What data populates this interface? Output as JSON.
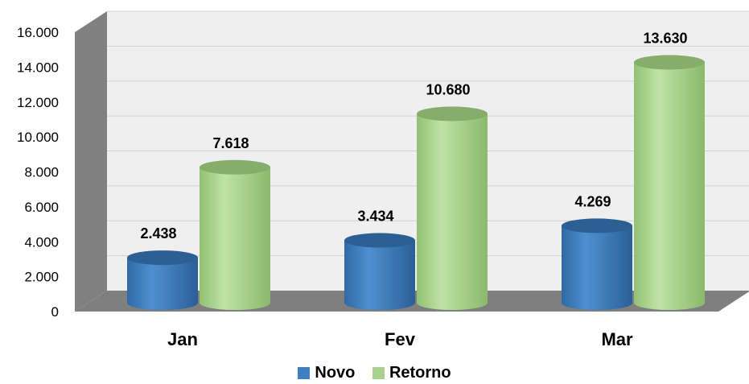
{
  "chart_data": {
    "type": "bar",
    "categories": [
      "Jan",
      "Fev",
      "Mar"
    ],
    "series": [
      {
        "name": "Novo",
        "values": [
          2438,
          3434,
          4269
        ],
        "labels": [
          "2.438",
          "3.434",
          "4.269"
        ],
        "color": "#3d7fc0"
      },
      {
        "name": "Retorno",
        "values": [
          7618,
          10680,
          13630
        ],
        "labels": [
          "7.618",
          "10.680",
          "13.630"
        ],
        "color": "#a9d18e"
      }
    ],
    "ylim": [
      0,
      16000
    ],
    "yticks": [
      0,
      2000,
      4000,
      6000,
      8000,
      10000,
      12000,
      14000,
      16000
    ],
    "ytick_labels": [
      "0",
      "2.000",
      "4.000",
      "6.000",
      "8.000",
      "10.000",
      "12.000",
      "14.000",
      "16.000"
    ],
    "grid": true,
    "legend_position": "bottom",
    "style": "3d-cylinder"
  }
}
